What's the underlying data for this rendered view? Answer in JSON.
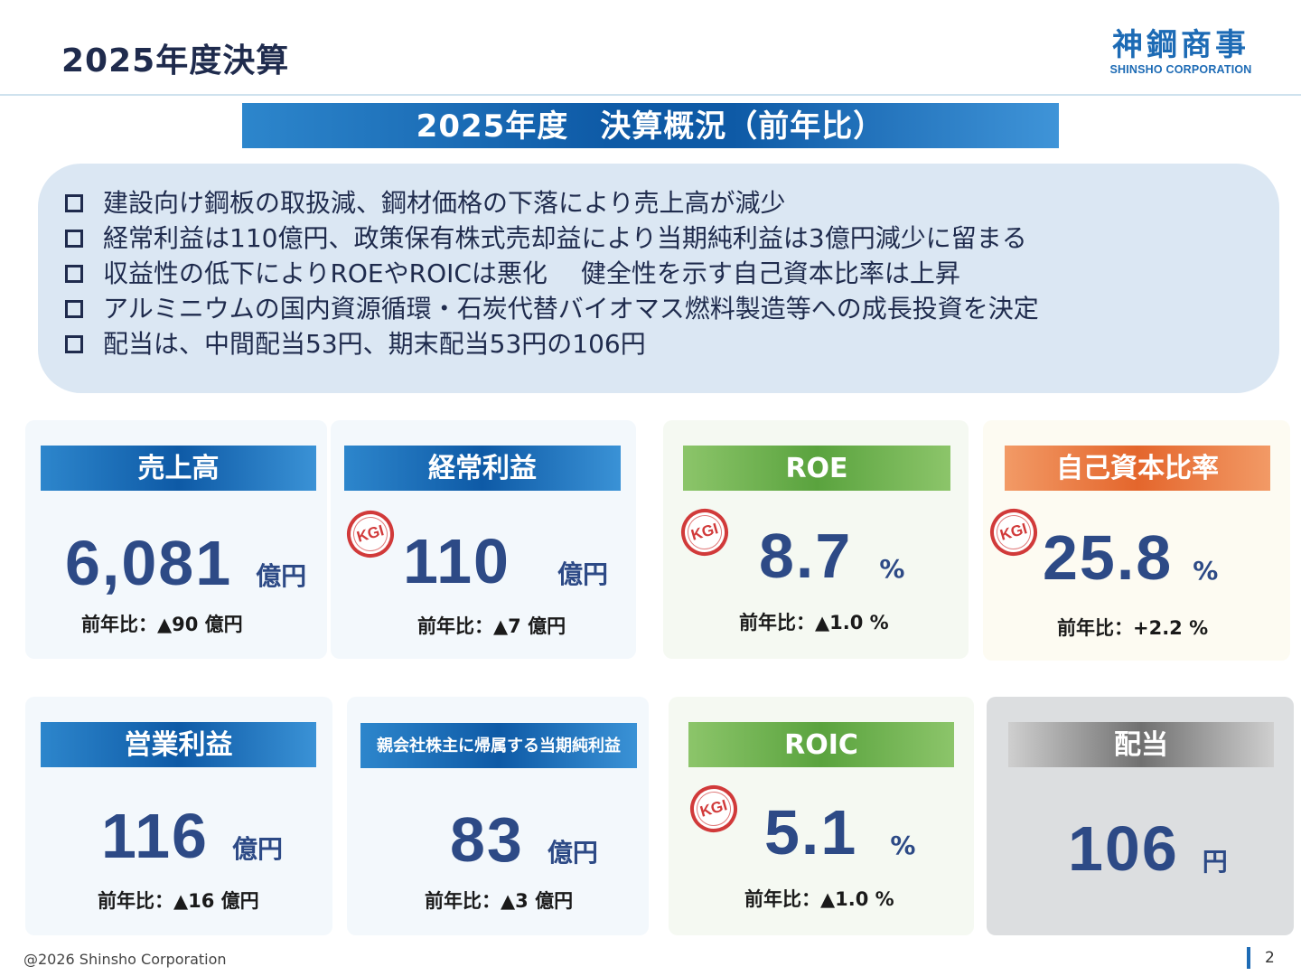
{
  "header": {
    "title": "2025年度決算",
    "logo_jp": "神鋼商事",
    "logo_en": "SHINSHO CORPORATION"
  },
  "banner": "2025年度　決算概況（前年比）",
  "summary": [
    "建設向け鋼板の取扱減、鋼材価格の下落により売上高が減少",
    "経常利益は110億円、政策保有株式売却益により当期純利益は3億円減少に留まる",
    "収益性の低下によりROEやROICは悪化　 健全性を示す自己資本比率は上昇",
    "アルミニウムの国内資源循環・石炭代替バイオマス燃料製造等への成長投資を決定",
    "配当は、中間配当53円、期末配当53円の106円"
  ],
  "kgi_label": "KGI",
  "cards": {
    "sales": {
      "title": "売上高",
      "value": "6,081",
      "unit": "億円",
      "yoy": "前年比：▲90 億円"
    },
    "ordinary_profit": {
      "title": "経常利益",
      "value": "110",
      "unit": "億円",
      "yoy": "前年比：▲7 億円"
    },
    "roe": {
      "title": "ROE",
      "value": "8.7",
      "unit": "%",
      "yoy": "前年比：▲1.0 %"
    },
    "equity_ratio": {
      "title": "自己資本比率",
      "value": "25.8",
      "unit": "%",
      "yoy": "前年比：+2.2 %"
    },
    "operating_profit": {
      "title": "営業利益",
      "value": "116",
      "unit": "億円",
      "yoy": "前年比：▲16 億円"
    },
    "net_income": {
      "title": "親会社株主に帰属する当期純利益",
      "value": "83",
      "unit": "億円",
      "yoy": "前年比：▲3 億円"
    },
    "roic": {
      "title": "ROIC",
      "value": "5.1",
      "unit": "%",
      "yoy": "前年比：▲1.0 %"
    },
    "dividend": {
      "title": "配当",
      "value": "106",
      "unit": "円"
    }
  },
  "footer": {
    "copyright": "@2026 Shinsho Corporation",
    "page": "2"
  },
  "colors": {
    "brand_blue": "#1d6bb5",
    "value_navy": "#2d4a86",
    "kgi_red": "#d13a3a",
    "green_header": "#5aa33e",
    "orange_header": "#e4662c",
    "gray_header": "#707070"
  }
}
